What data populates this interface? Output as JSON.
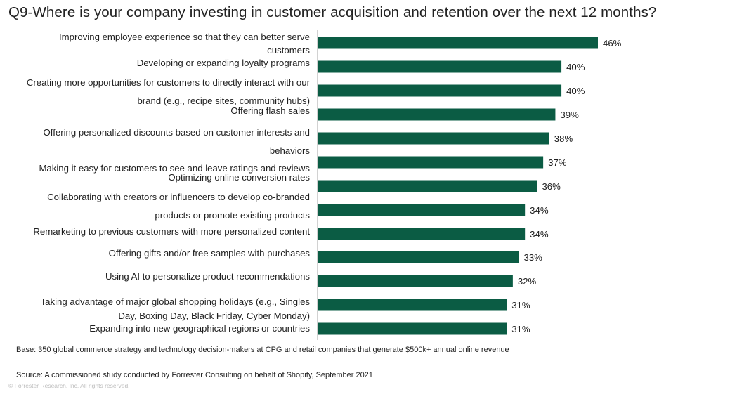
{
  "chart_data": {
    "type": "bar",
    "orientation": "horizontal",
    "title": "Q9-Where is your company investing in customer acquisition and retention over the next 12 months?",
    "categories": [
      "Improving employee experience so that they can better serve customers",
      "Developing or expanding loyalty programs",
      "Creating more opportunities for customers to directly interact with our brand (e.g., recipe sites, community hubs)",
      "Offering flash sales",
      "Offering personalized discounts based on customer interests and behaviors",
      "Making it easy for customers to see and leave ratings and reviews",
      "Optimizing online conversion rates",
      "Collaborating with creators or influencers to develop co-branded products or promote existing products",
      "Remarketing to previous customers with more personalized content",
      "Offering gifts and/or free samples with purchases",
      "Using AI to personalize product recommendations",
      "Taking advantage of major global shopping holidays (e.g., Singles Day, Boxing Day, Black Friday, Cyber Monday)",
      "Expanding into new geographical regions or countries"
    ],
    "values": [
      46,
      40,
      40,
      39,
      38,
      37,
      36,
      34,
      34,
      33,
      32,
      31,
      31
    ],
    "value_labels": [
      "46%",
      "40%",
      "40%",
      "39%",
      "38%",
      "37%",
      "36%",
      "34%",
      "34%",
      "33%",
      "32%",
      "31%",
      "31%"
    ],
    "unit": "%",
    "xlim": [
      0,
      50
    ],
    "grid": false,
    "legend": null,
    "bar_color": "#0b5c44"
  },
  "footnotes": {
    "base": "Base: 350 global commerce strategy and technology decision-makers at CPG and retail companies that generate $500k+ annual online revenue",
    "source": "Source: A commissioned study conducted by Forrester Consulting on behalf of Shopify, September 2021",
    "copyright": "© Forrester Research, Inc. All rights reserved."
  }
}
